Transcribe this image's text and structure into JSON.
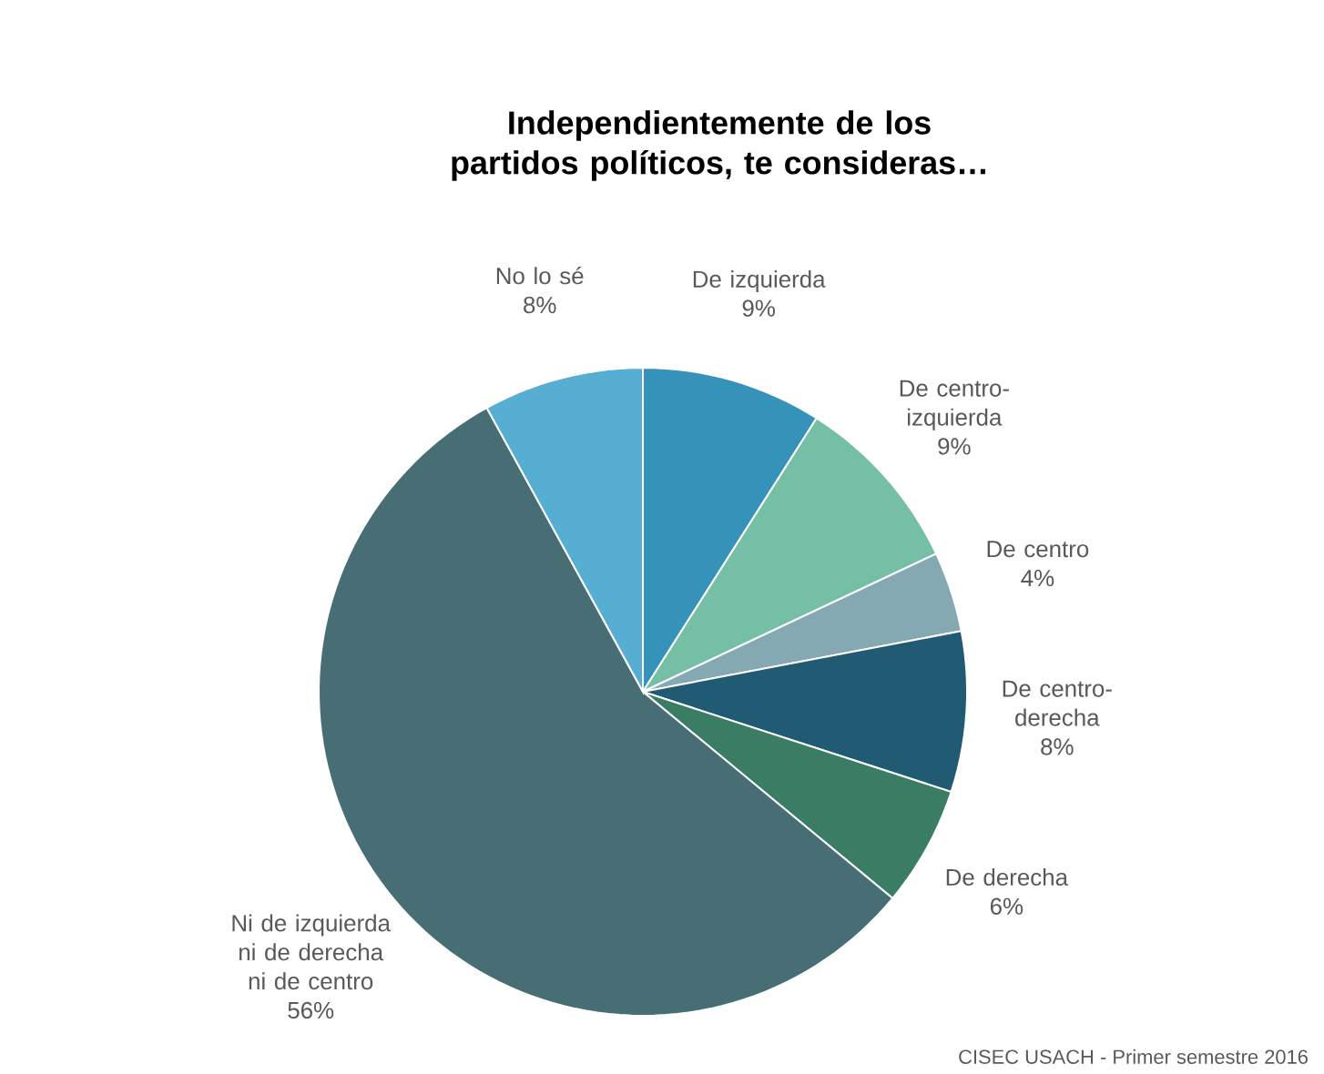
{
  "chart_data": {
    "type": "pie",
    "title": "Independientemente de los partidos políticos, te consideras…",
    "categories": [
      "De izquierda",
      "De centro-izquierda",
      "De centro",
      "De centro-derecha",
      "De derecha",
      "Ni de izquierda ni de derecha ni de centro",
      "No lo sé"
    ],
    "values": [
      9,
      9,
      4,
      8,
      6,
      56,
      8
    ],
    "value_labels": [
      "9%",
      "9%",
      "4%",
      "8%",
      "6%",
      "56%",
      "8%"
    ],
    "colors": [
      "#3592b8",
      "#75bfa6",
      "#84a9b3",
      "#215a73",
      "#3a7c64",
      "#476e74",
      "#56afd3"
    ],
    "annotations": [
      "CISEC USACH - Primer semestre 2016"
    ]
  }
}
